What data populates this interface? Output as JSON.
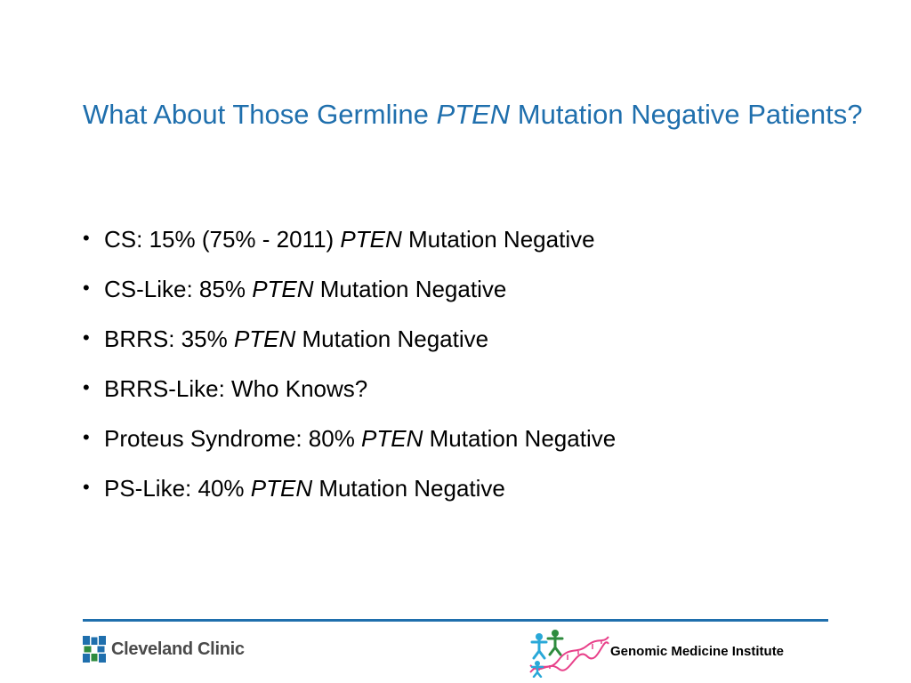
{
  "slide": {
    "title_part1": "What About Those Germline ",
    "title_italic": "PTEN",
    "title_part2": " Mutation Negative Patients?",
    "bullets": [
      {
        "prefix": "CS: 15% (75% - 2011) ",
        "italic": "PTEN",
        "suffix": " Mutation Negative"
      },
      {
        "prefix": "CS-Like: 85% ",
        "italic": "PTEN",
        "suffix": " Mutation Negative"
      },
      {
        "prefix": "BRRS: 35% ",
        "italic": "PTEN",
        "suffix": " Mutation Negative"
      },
      {
        "prefix": "BRRS-Like: Who Knows?",
        "italic": "",
        "suffix": ""
      },
      {
        "prefix": "Proteus Syndrome: 80% ",
        "italic": "PTEN",
        "suffix": " Mutation Negative"
      },
      {
        "prefix": "PS-Like: 40% ",
        "italic": "PTEN",
        "suffix": " Mutation Negative"
      }
    ],
    "bullet_char": "•"
  },
  "footer": {
    "left_logo_text": "Cleveland Clinic",
    "left_logo_icon": "cleveland-clinic-cross-icon",
    "right_logo_text": "Genomic Medicine Institute",
    "right_logo_icon": "dna-figures-icon"
  },
  "colors": {
    "title": "#1f6fad",
    "rule": "#1f6fad",
    "cc_blue": "#1f6fad",
    "cc_green": "#2e8b3e",
    "text": "#000000"
  }
}
